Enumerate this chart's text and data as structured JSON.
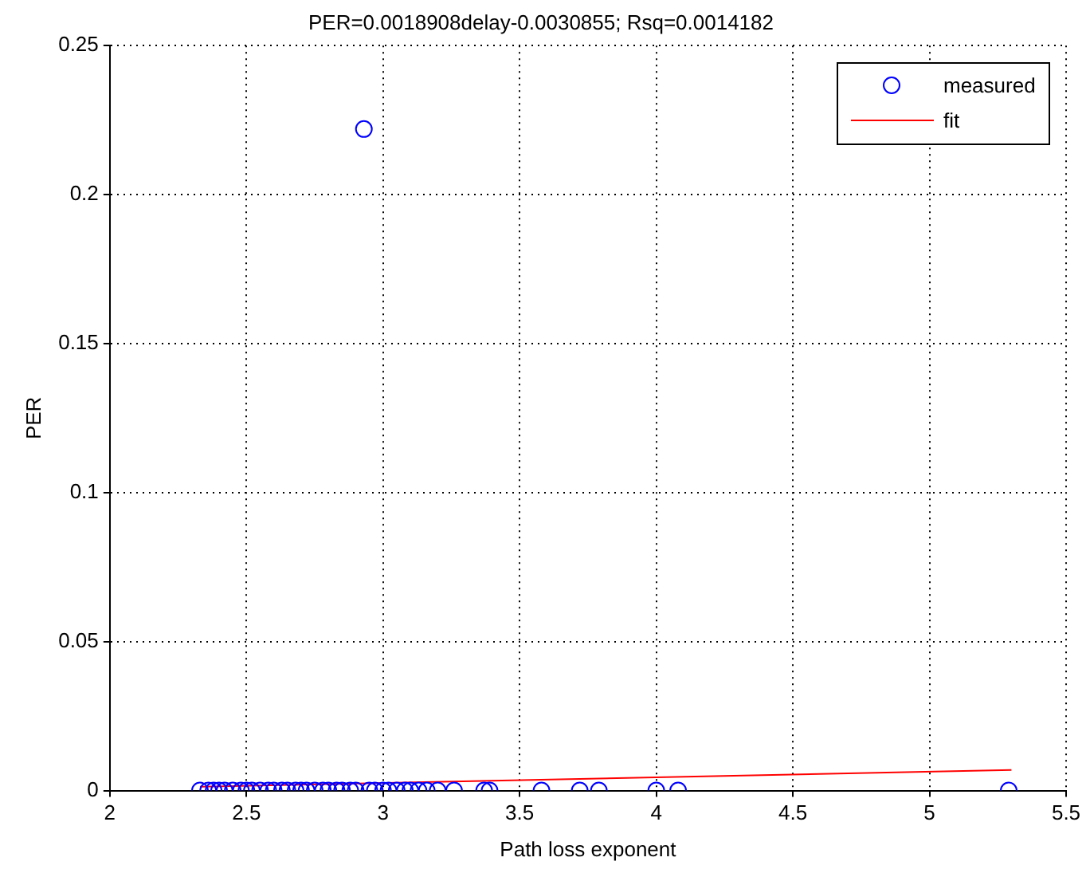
{
  "chart_data": {
    "type": "scatter",
    "title": "PER=0.0018908delay-0.0030855; Rsq=0.0014182",
    "xlabel": "Path loss exponent",
    "ylabel": "PER",
    "xlim": [
      2,
      5.5
    ],
    "xticks": [
      2,
      2.5,
      3,
      3.5,
      4,
      4.5,
      5,
      5.5
    ],
    "ylim": [
      0,
      0.25
    ],
    "yticks": [
      0,
      0.05,
      0.1,
      0.15,
      0.2,
      0.25
    ],
    "grid": true,
    "legend": "top right",
    "series": [
      {
        "name": "measured",
        "marker": "circle",
        "color": "#0000ff",
        "x": [
          2.33,
          2.36,
          2.38,
          2.4,
          2.42,
          2.45,
          2.48,
          2.5,
          2.52,
          2.55,
          2.58,
          2.6,
          2.63,
          2.65,
          2.68,
          2.7,
          2.72,
          2.75,
          2.78,
          2.8,
          2.83,
          2.85,
          2.88,
          2.9,
          2.93,
          2.95,
          2.97,
          3.0,
          3.02,
          3.05,
          3.08,
          3.1,
          3.13,
          3.16,
          3.2,
          3.26,
          3.37,
          3.39,
          3.58,
          3.72,
          3.79,
          4.0,
          4.08,
          5.29
        ],
        "values": [
          0,
          0,
          0,
          0,
          0,
          0,
          0,
          0,
          0,
          0,
          0,
          0,
          0,
          0,
          0,
          0,
          0,
          0,
          0,
          0,
          0,
          0,
          0,
          0,
          0.222,
          0,
          0,
          0,
          0,
          0,
          0,
          0,
          0,
          0,
          0,
          0,
          0,
          0,
          0,
          0,
          0,
          0,
          0,
          0
        ]
      },
      {
        "name": "fit",
        "type": "line",
        "marker": "none",
        "color": "#ff0000",
        "x": [
          2.33,
          5.3
        ],
        "values": [
          0.0013,
          0.0069
        ]
      }
    ]
  }
}
